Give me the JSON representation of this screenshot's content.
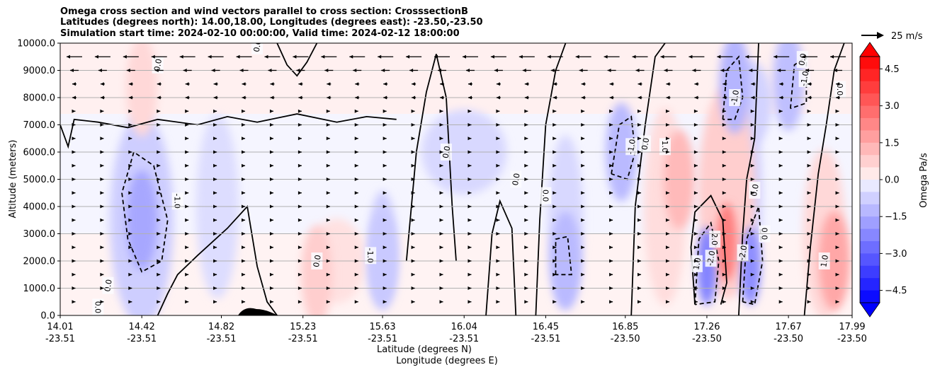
{
  "chart_data": {
    "type": "heatmap",
    "title_lines": [
      "Omega cross section and wind vectors parallel to cross section: CrosssectionB",
      "Latitudes (degrees north): 14.00,18.00, Longitudes (degrees east): -23.50,-23.50",
      "Simulation start time: 2024-02-10 00:00:00, Valid time: 2024-02-12 18:00:00"
    ],
    "ylabel": "Altitude (meters)",
    "xlabel_lines": [
      "Latitude (degrees N)",
      "Longitude (degrees E)"
    ],
    "ylim": [
      0,
      10000
    ],
    "xlim": [
      14.01,
      17.99
    ],
    "y_ticks": [
      "0.0",
      "1000.0",
      "2000.0",
      "3000.0",
      "4000.0",
      "5000.0",
      "6000.0",
      "7000.0",
      "8000.0",
      "9000.0",
      "10000.0"
    ],
    "x_ticks": [
      {
        "lat": "14.01",
        "lon": "-23.51"
      },
      {
        "lat": "14.42",
        "lon": "-23.51"
      },
      {
        "lat": "14.82",
        "lon": "-23.51"
      },
      {
        "lat": "15.23",
        "lon": "-23.51"
      },
      {
        "lat": "15.63",
        "lon": "-23.51"
      },
      {
        "lat": "16.04",
        "lon": "-23.51"
      },
      {
        "lat": "16.45",
        "lon": "-23.51"
      },
      {
        "lat": "16.85",
        "lon": "-23.50"
      },
      {
        "lat": "17.26",
        "lon": "-23.50"
      },
      {
        "lat": "17.67",
        "lon": "-23.50"
      },
      {
        "lat": "17.99",
        "lon": "-23.50"
      }
    ],
    "colorbar": {
      "label": "Omega Pa/s",
      "range": [
        -5.0,
        5.0
      ],
      "tick_labels": [
        "4.5",
        "3.0",
        "1.5",
        "0.0",
        "−1.5",
        "−3.0",
        "−4.5"
      ],
      "negative_color": "#0000ff",
      "positive_color": "#ff0000"
    },
    "wind_reference": "25 m/s",
    "contour_labels": [
      "0.0",
      "1.0",
      "2.0",
      "-1.0",
      "-2.0"
    ],
    "negative_regions": [
      {
        "lat": 14.42,
        "alt": 3500,
        "value": -1.6
      },
      {
        "lat": 16.83,
        "alt": 6000,
        "value": -1.2
      },
      {
        "lat": 16.55,
        "alt": 2000,
        "value": -1.2
      },
      {
        "lat": 17.26,
        "alt": 1800,
        "value": -2.3
      },
      {
        "lat": 17.48,
        "alt": 1800,
        "value": -2.1
      },
      {
        "lat": 17.4,
        "alt": 8500,
        "value": -1.3
      },
      {
        "lat": 17.67,
        "alt": 8600,
        "value": -1.1
      },
      {
        "lat": 15.63,
        "alt": 2000,
        "value": -0.9
      }
    ],
    "positive_regions": [
      {
        "lat": 14.42,
        "alt": 8400,
        "value": 0.6
      },
      {
        "lat": 17.12,
        "alt": 5000,
        "value": 1.2
      },
      {
        "lat": 17.36,
        "alt": 2700,
        "value": 2.4
      },
      {
        "lat": 17.9,
        "alt": 2000,
        "value": 1.6
      },
      {
        "lat": 15.3,
        "alt": 1500,
        "value": 0.8
      }
    ]
  }
}
